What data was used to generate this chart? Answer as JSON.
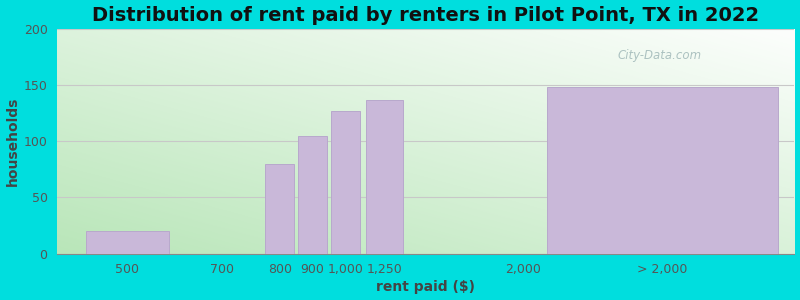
{
  "title": "Distribution of rent paid by renters in Pilot Point, TX in 2022",
  "xlabel": "rent paid ($)",
  "ylabel": "households",
  "bar_labels": [
    "500",
    "700",
    "800",
    "900",
    "1,000",
    "1,250",
    "2,000",
    "> 2,000"
  ],
  "bar_heights": [
    20,
    0,
    80,
    105,
    127,
    137,
    0,
    148
  ],
  "bar_color": "#c9b8d9",
  "bar_edgecolor": "#b8a8cc",
  "ylim": [
    0,
    200
  ],
  "yticks": [
    0,
    50,
    100,
    150,
    200
  ],
  "background_outer": "#00dede",
  "grid_color": "#c8c8c8",
  "title_fontsize": 14,
  "axis_label_fontsize": 10,
  "tick_fontsize": 9,
  "watermark": "City-Data.com",
  "watermark_color": "#a0b8b8"
}
